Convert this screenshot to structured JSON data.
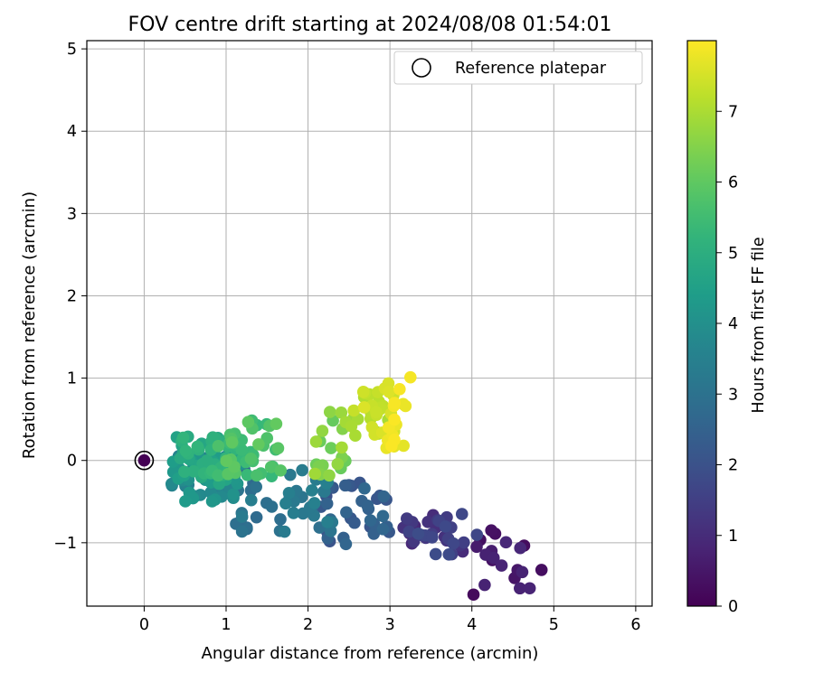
{
  "chart_data": {
    "type": "scatter",
    "title": "FOV centre drift starting at 2024/08/08 01:54:01",
    "xlabel": "Angular distance from reference (arcmin)",
    "ylabel": "Rotation from reference (arcmin)",
    "xlim": [
      -0.7,
      6.2
    ],
    "ylim": [
      -1.77,
      5.1
    ],
    "xticks": [
      0,
      1,
      2,
      3,
      4,
      5,
      6
    ],
    "yticks": [
      -1,
      0,
      1,
      2,
      3,
      4,
      5
    ],
    "grid": true,
    "legend": {
      "placement": "top-right",
      "entries": [
        {
          "label": "Reference platepar",
          "marker": "open-circle",
          "color": "#000000"
        }
      ]
    },
    "reference_point": {
      "x": 0,
      "y": 0,
      "hours": 0
    },
    "colorbar": {
      "label": "Hours from first FF file",
      "colormap": "viridis",
      "range": [
        0,
        8
      ],
      "ticks": [
        0,
        1,
        2,
        3,
        4,
        5,
        6,
        7
      ]
    },
    "point_groups": [
      {
        "hours": [
          0.15,
          0.9
        ],
        "x_range": [
          3.9,
          4.85
        ],
        "y_range": [
          -1.65,
          -0.78
        ],
        "count": 18
      },
      {
        "hours": [
          0.9,
          1.9
        ],
        "x_range": [
          3.0,
          4.1
        ],
        "y_range": [
          -1.15,
          -0.65
        ],
        "count": 34
      },
      {
        "hours": [
          1.9,
          2.7
        ],
        "x_range": [
          2.1,
          3.1
        ],
        "y_range": [
          -1.05,
          -0.25
        ],
        "count": 36
      },
      {
        "hours": [
          2.7,
          3.5
        ],
        "x_range": [
          1.0,
          2.5
        ],
        "y_range": [
          -0.9,
          -0.1
        ],
        "count": 46
      },
      {
        "hours": [
          3.5,
          4.4
        ],
        "x_range": [
          0.2,
          1.3
        ],
        "y_range": [
          -0.5,
          0.1
        ],
        "count": 50
      },
      {
        "hours": [
          4.4,
          5.3
        ],
        "x_range": [
          0.35,
          1.2
        ],
        "y_range": [
          -0.3,
          0.3
        ],
        "count": 55
      },
      {
        "hours": [
          5.3,
          6.1
        ],
        "x_range": [
          0.8,
          1.8
        ],
        "y_range": [
          -0.2,
          0.5
        ],
        "count": 42
      },
      {
        "hours": [
          6.1,
          7.0
        ],
        "x_range": [
          2.0,
          2.6
        ],
        "y_range": [
          -0.2,
          0.65
        ],
        "count": 22
      },
      {
        "hours": [
          6.9,
          7.6
        ],
        "x_range": [
          2.5,
          3.1
        ],
        "y_range": [
          0.3,
          0.85
        ],
        "count": 30
      },
      {
        "hours": [
          7.5,
          8.0
        ],
        "x_range": [
          2.85,
          3.25
        ],
        "y_range": [
          0.15,
          1.02
        ],
        "count": 18
      }
    ],
    "notable_points": [
      {
        "x": 4.85,
        "y": -1.33,
        "hours": 0.3
      },
      {
        "x": 4.02,
        "y": -1.63,
        "hours": 0.2
      },
      {
        "x": 3.25,
        "y": 1.01,
        "hours": 7.9
      },
      {
        "x": 3.05,
        "y": 0.17,
        "hours": 7.7
      },
      {
        "x": 2.15,
        "y": -0.17,
        "hours": 6.5
      }
    ]
  }
}
